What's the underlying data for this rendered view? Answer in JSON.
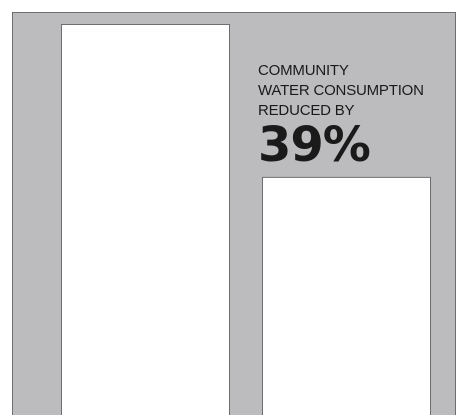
{
  "chart_data": {
    "type": "bar",
    "categories": [
      "",
      ""
    ],
    "values": [
      100,
      61
    ],
    "ylim": [
      0,
      100
    ],
    "grid": false,
    "legend": "none",
    "annotation": {
      "lines": [
        "COMMUNITY",
        "WATER CONSUMPTION",
        "REDUCED BY"
      ],
      "value": "39%"
    },
    "colors": {
      "background": "#bcbcbe",
      "bar_fill": "#ffffff",
      "bar_stroke": "#6e6e70",
      "text": "#1a1a1a"
    }
  }
}
